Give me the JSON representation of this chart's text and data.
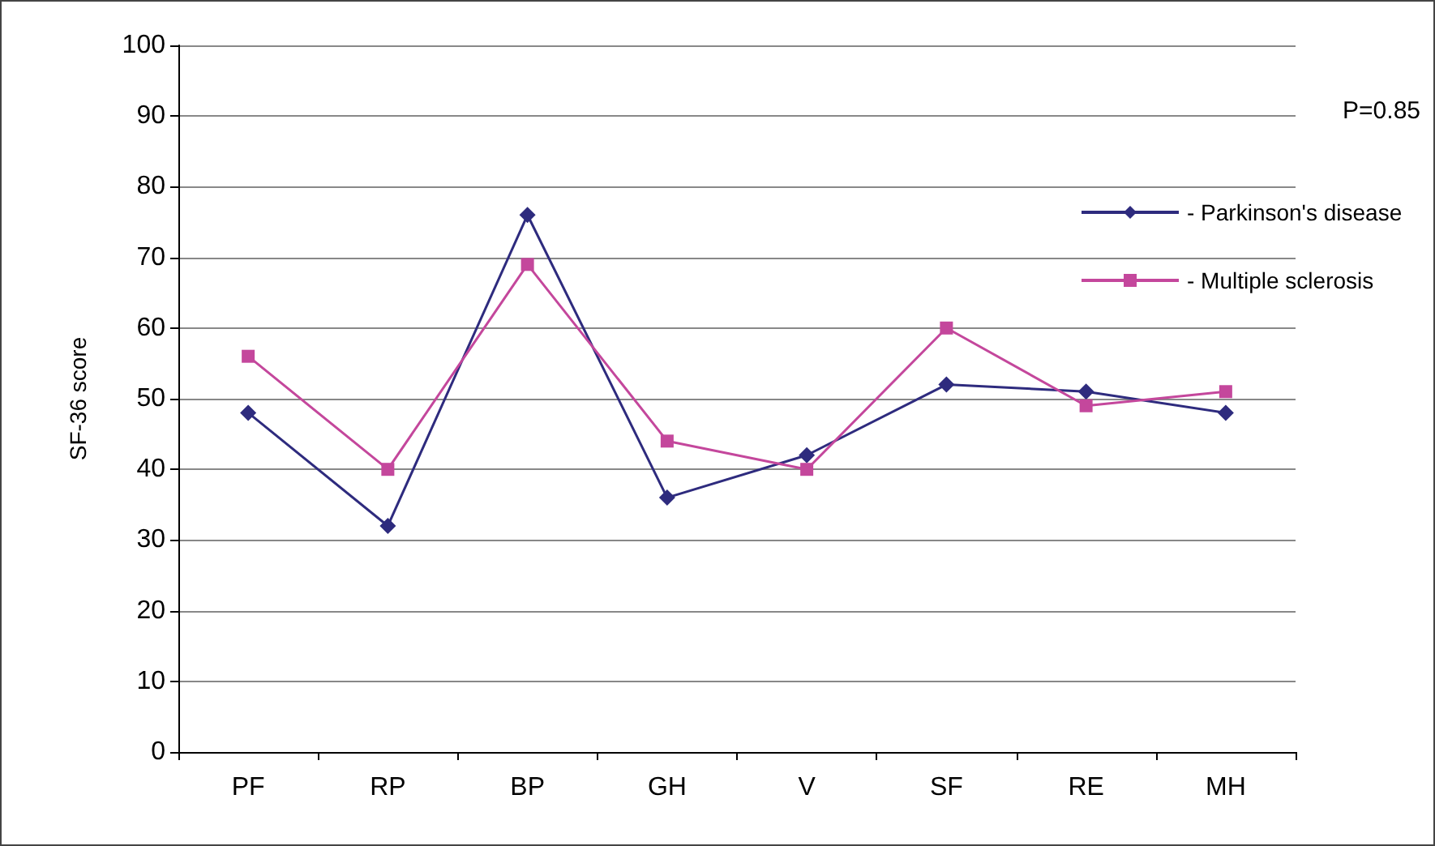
{
  "chart_data": {
    "type": "line",
    "ylabel": "SF-36 score",
    "categories": [
      "PF",
      "RP",
      "BP",
      "GH",
      "V",
      "SF",
      "RE",
      "MH"
    ],
    "series": [
      {
        "name": "- Parkinson's disease",
        "color": "#2e2b7e",
        "marker": "diamond",
        "values": [
          48,
          32,
          76,
          36,
          42,
          52,
          51,
          48
        ]
      },
      {
        "name": "- Multiple sclerosis",
        "color": "#c4479c",
        "marker": "square",
        "values": [
          56,
          40,
          69,
          44,
          40,
          60,
          49,
          51
        ]
      }
    ],
    "ylim": [
      0,
      100
    ],
    "yticks": [
      0,
      10,
      20,
      30,
      40,
      50,
      60,
      70,
      80,
      90,
      100
    ],
    "grid": "y",
    "legend": "right",
    "annotations": [
      "P=0.85"
    ]
  }
}
